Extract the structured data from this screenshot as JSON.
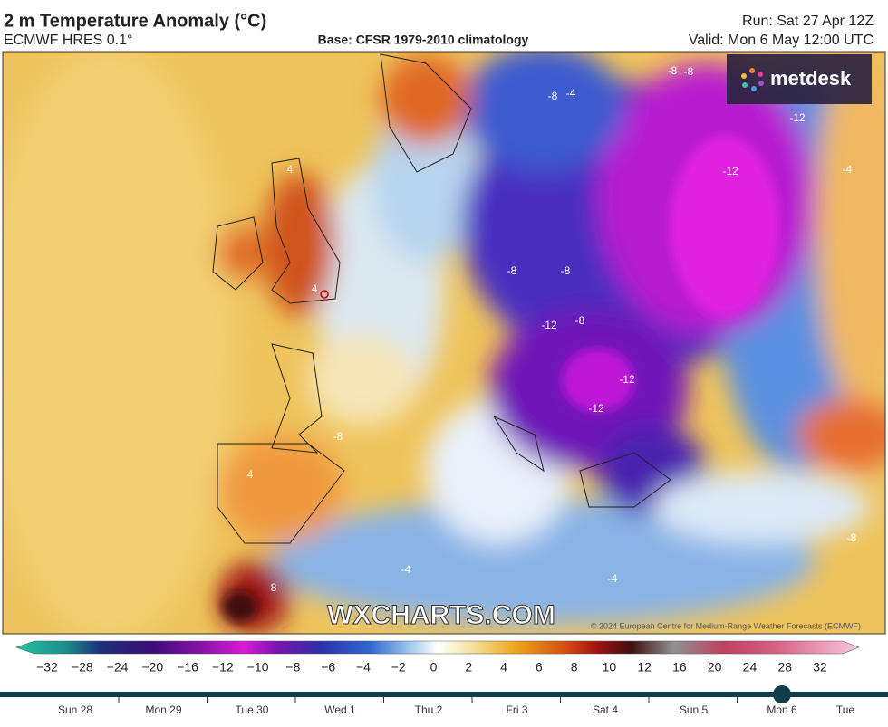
{
  "header": {
    "title": "2 m Temperature Anomaly (°C)",
    "model": "ECMWF HRES 0.1°",
    "base": "Base: CFSR 1979-2010 climatology",
    "run": "Run: Sat 27 Apr 12Z",
    "valid": "Valid: Mon 6 May 12:00 UTC"
  },
  "map": {
    "brand": "metdesk",
    "watermark": "WXCHARTS.COM",
    "credit": "© 2024 European Centre for Medium-Range Weather Forecasts (ECMWF)",
    "contour_labels": [
      "-8",
      "-4",
      "-8",
      "-12",
      "-12",
      "-8",
      "-8",
      "-12",
      "-8",
      "-12",
      "-12",
      "-4",
      "4",
      "4",
      "-8",
      "8",
      "-4",
      "-4",
      "-8",
      "4",
      "-8"
    ]
  },
  "colorbar": {
    "ticks": [
      "−32",
      "−28",
      "−24",
      "−20",
      "−16",
      "−12",
      "−10",
      "−8",
      "−6",
      "−4",
      "−2",
      "0",
      "2",
      "4",
      "6",
      "8",
      "10",
      "12",
      "16",
      "20",
      "24",
      "28",
      "32"
    ]
  },
  "timeline": {
    "days": [
      "Sun 28",
      "Mon 29",
      "Tue 30",
      "Wed 1",
      "Thu 2",
      "Fri 3",
      "Sat 4",
      "Sun 5",
      "Mon 6",
      "Tue"
    ],
    "selected": 8
  }
}
